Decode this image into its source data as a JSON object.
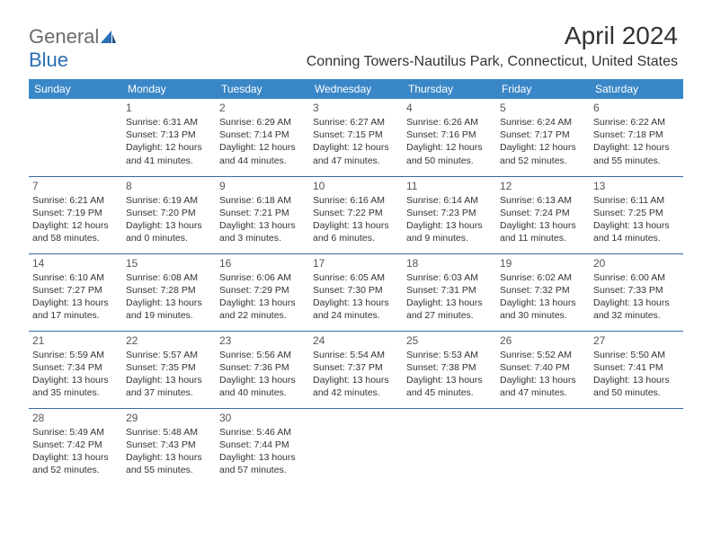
{
  "logo": {
    "part1": "General",
    "part2": "Blue"
  },
  "title": "April 2024",
  "location": "Conning Towers-Nautilus Park, Connecticut, United States",
  "colors": {
    "header_bg": "#3a87c7",
    "header_text": "#ffffff",
    "border": "#3a6a9a",
    "text": "#333333",
    "daynum": "#555555",
    "logo_gray": "#6b6b6b",
    "logo_blue": "#2a6fb5",
    "background": "#ffffff"
  },
  "weekdays": [
    "Sunday",
    "Monday",
    "Tuesday",
    "Wednesday",
    "Thursday",
    "Friday",
    "Saturday"
  ],
  "cells": [
    [
      null,
      {
        "n": "1",
        "sr": "Sunrise: 6:31 AM",
        "ss": "Sunset: 7:13 PM",
        "dl1": "Daylight: 12 hours",
        "dl2": "and 41 minutes."
      },
      {
        "n": "2",
        "sr": "Sunrise: 6:29 AM",
        "ss": "Sunset: 7:14 PM",
        "dl1": "Daylight: 12 hours",
        "dl2": "and 44 minutes."
      },
      {
        "n": "3",
        "sr": "Sunrise: 6:27 AM",
        "ss": "Sunset: 7:15 PM",
        "dl1": "Daylight: 12 hours",
        "dl2": "and 47 minutes."
      },
      {
        "n": "4",
        "sr": "Sunrise: 6:26 AM",
        "ss": "Sunset: 7:16 PM",
        "dl1": "Daylight: 12 hours",
        "dl2": "and 50 minutes."
      },
      {
        "n": "5",
        "sr": "Sunrise: 6:24 AM",
        "ss": "Sunset: 7:17 PM",
        "dl1": "Daylight: 12 hours",
        "dl2": "and 52 minutes."
      },
      {
        "n": "6",
        "sr": "Sunrise: 6:22 AM",
        "ss": "Sunset: 7:18 PM",
        "dl1": "Daylight: 12 hours",
        "dl2": "and 55 minutes."
      }
    ],
    [
      {
        "n": "7",
        "sr": "Sunrise: 6:21 AM",
        "ss": "Sunset: 7:19 PM",
        "dl1": "Daylight: 12 hours",
        "dl2": "and 58 minutes."
      },
      {
        "n": "8",
        "sr": "Sunrise: 6:19 AM",
        "ss": "Sunset: 7:20 PM",
        "dl1": "Daylight: 13 hours",
        "dl2": "and 0 minutes."
      },
      {
        "n": "9",
        "sr": "Sunrise: 6:18 AM",
        "ss": "Sunset: 7:21 PM",
        "dl1": "Daylight: 13 hours",
        "dl2": "and 3 minutes."
      },
      {
        "n": "10",
        "sr": "Sunrise: 6:16 AM",
        "ss": "Sunset: 7:22 PM",
        "dl1": "Daylight: 13 hours",
        "dl2": "and 6 minutes."
      },
      {
        "n": "11",
        "sr": "Sunrise: 6:14 AM",
        "ss": "Sunset: 7:23 PM",
        "dl1": "Daylight: 13 hours",
        "dl2": "and 9 minutes."
      },
      {
        "n": "12",
        "sr": "Sunrise: 6:13 AM",
        "ss": "Sunset: 7:24 PM",
        "dl1": "Daylight: 13 hours",
        "dl2": "and 11 minutes."
      },
      {
        "n": "13",
        "sr": "Sunrise: 6:11 AM",
        "ss": "Sunset: 7:25 PM",
        "dl1": "Daylight: 13 hours",
        "dl2": "and 14 minutes."
      }
    ],
    [
      {
        "n": "14",
        "sr": "Sunrise: 6:10 AM",
        "ss": "Sunset: 7:27 PM",
        "dl1": "Daylight: 13 hours",
        "dl2": "and 17 minutes."
      },
      {
        "n": "15",
        "sr": "Sunrise: 6:08 AM",
        "ss": "Sunset: 7:28 PM",
        "dl1": "Daylight: 13 hours",
        "dl2": "and 19 minutes."
      },
      {
        "n": "16",
        "sr": "Sunrise: 6:06 AM",
        "ss": "Sunset: 7:29 PM",
        "dl1": "Daylight: 13 hours",
        "dl2": "and 22 minutes."
      },
      {
        "n": "17",
        "sr": "Sunrise: 6:05 AM",
        "ss": "Sunset: 7:30 PM",
        "dl1": "Daylight: 13 hours",
        "dl2": "and 24 minutes."
      },
      {
        "n": "18",
        "sr": "Sunrise: 6:03 AM",
        "ss": "Sunset: 7:31 PM",
        "dl1": "Daylight: 13 hours",
        "dl2": "and 27 minutes."
      },
      {
        "n": "19",
        "sr": "Sunrise: 6:02 AM",
        "ss": "Sunset: 7:32 PM",
        "dl1": "Daylight: 13 hours",
        "dl2": "and 30 minutes."
      },
      {
        "n": "20",
        "sr": "Sunrise: 6:00 AM",
        "ss": "Sunset: 7:33 PM",
        "dl1": "Daylight: 13 hours",
        "dl2": "and 32 minutes."
      }
    ],
    [
      {
        "n": "21",
        "sr": "Sunrise: 5:59 AM",
        "ss": "Sunset: 7:34 PM",
        "dl1": "Daylight: 13 hours",
        "dl2": "and 35 minutes."
      },
      {
        "n": "22",
        "sr": "Sunrise: 5:57 AM",
        "ss": "Sunset: 7:35 PM",
        "dl1": "Daylight: 13 hours",
        "dl2": "and 37 minutes."
      },
      {
        "n": "23",
        "sr": "Sunrise: 5:56 AM",
        "ss": "Sunset: 7:36 PM",
        "dl1": "Daylight: 13 hours",
        "dl2": "and 40 minutes."
      },
      {
        "n": "24",
        "sr": "Sunrise: 5:54 AM",
        "ss": "Sunset: 7:37 PM",
        "dl1": "Daylight: 13 hours",
        "dl2": "and 42 minutes."
      },
      {
        "n": "25",
        "sr": "Sunrise: 5:53 AM",
        "ss": "Sunset: 7:38 PM",
        "dl1": "Daylight: 13 hours",
        "dl2": "and 45 minutes."
      },
      {
        "n": "26",
        "sr": "Sunrise: 5:52 AM",
        "ss": "Sunset: 7:40 PM",
        "dl1": "Daylight: 13 hours",
        "dl2": "and 47 minutes."
      },
      {
        "n": "27",
        "sr": "Sunrise: 5:50 AM",
        "ss": "Sunset: 7:41 PM",
        "dl1": "Daylight: 13 hours",
        "dl2": "and 50 minutes."
      }
    ],
    [
      {
        "n": "28",
        "sr": "Sunrise: 5:49 AM",
        "ss": "Sunset: 7:42 PM",
        "dl1": "Daylight: 13 hours",
        "dl2": "and 52 minutes."
      },
      {
        "n": "29",
        "sr": "Sunrise: 5:48 AM",
        "ss": "Sunset: 7:43 PM",
        "dl1": "Daylight: 13 hours",
        "dl2": "and 55 minutes."
      },
      {
        "n": "30",
        "sr": "Sunrise: 5:46 AM",
        "ss": "Sunset: 7:44 PM",
        "dl1": "Daylight: 13 hours",
        "dl2": "and 57 minutes."
      },
      null,
      null,
      null,
      null
    ]
  ]
}
